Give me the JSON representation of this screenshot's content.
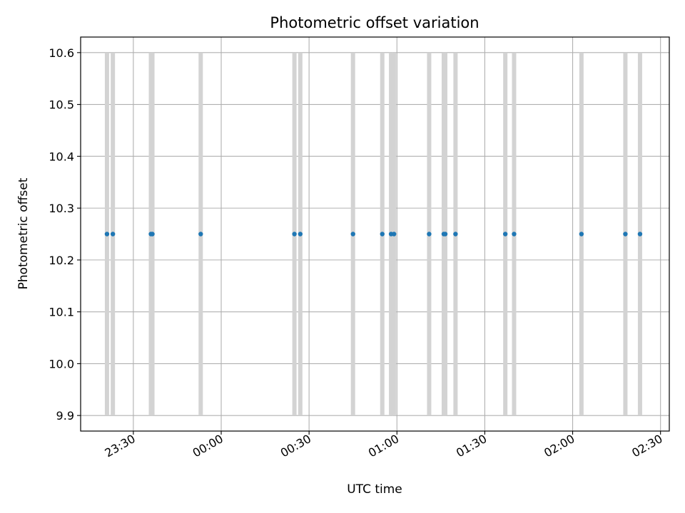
{
  "chart_data": {
    "type": "scatter",
    "title": "Photometric offset variation",
    "xlabel": "UTC time",
    "ylabel": "Photometric offset",
    "xlim": [
      "23:12",
      "02:33"
    ],
    "ylim": [
      9.87,
      10.63
    ],
    "grid": true,
    "x_ticks": [
      "23:30",
      "00:00",
      "00:30",
      "01:00",
      "01:30",
      "02:00",
      "02:30"
    ],
    "y_ticks": [
      "9.9",
      "10.0",
      "10.1",
      "10.2",
      "10.3",
      "10.4",
      "10.5",
      "10.6"
    ],
    "series": [
      {
        "marker_color": "#1f77b4",
        "band_color": "#d3d3d3",
        "band_range": [
          9.9,
          10.6
        ],
        "times": [
          "23:21",
          "23:23",
          "23:36",
          "23:36.5",
          "23:53",
          "00:25",
          "00:27",
          "00:45",
          "00:55",
          "00:58",
          "00:59",
          "01:11",
          "01:16",
          "01:16.5",
          "01:20",
          "01:37",
          "01:40",
          "02:03",
          "02:18",
          "02:23"
        ],
        "values": [
          10.25,
          10.25,
          10.25,
          10.25,
          10.25,
          10.25,
          10.25,
          10.25,
          10.25,
          10.25,
          10.25,
          10.25,
          10.25,
          10.25,
          10.25,
          10.25,
          10.25,
          10.25,
          10.25,
          10.25
        ]
      }
    ]
  }
}
